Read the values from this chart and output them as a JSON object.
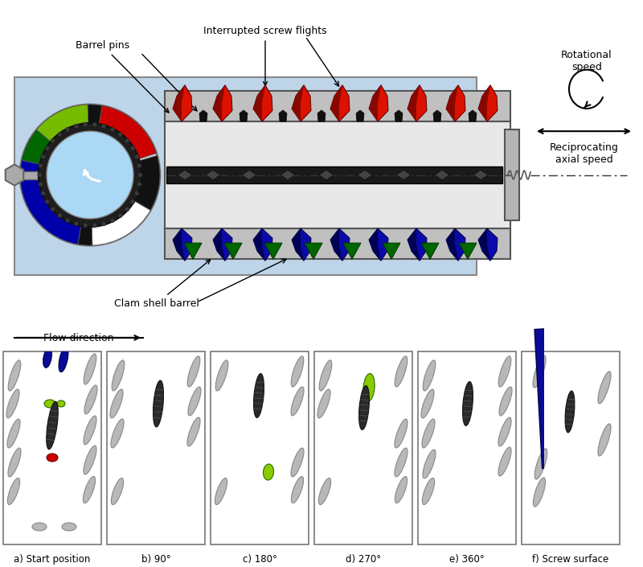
{
  "annotations": {
    "barrel_pins": "Barrel pins",
    "interrupted": "Interrupted screw flights",
    "clam_shell": "Clam shell barrel",
    "rotational_speed": "Rotational\nspeed",
    "reciprocating": "Reciprocating\naxial speed"
  },
  "panel_labels": [
    "a) Start position",
    "b) 90°",
    "c) 180°",
    "d) 270°",
    "e) 360°",
    "f) Screw surface\ncoverage"
  ],
  "colors": {
    "red": "#cc0000",
    "blue": "#0a0a99",
    "lime": "#88cc00",
    "dark": "#333333",
    "gray": "#b0b0b0",
    "light_blue_bg": "#bed4e8",
    "barrel_gray": "#c8c8c8",
    "inner_gray": "#e0e0e0",
    "gear_dark": "#222222"
  }
}
